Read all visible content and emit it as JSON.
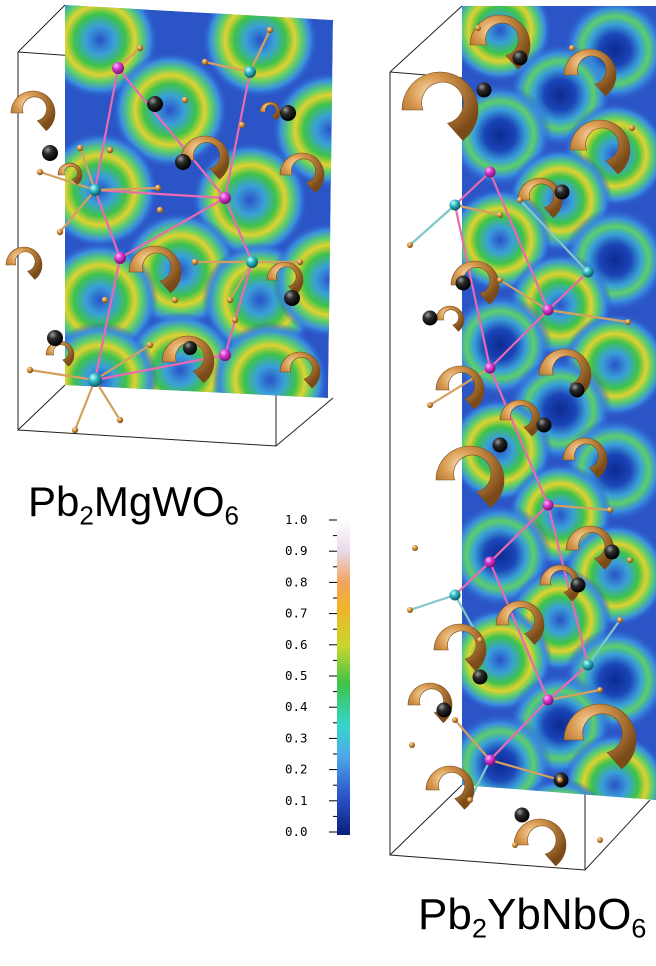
{
  "structures": [
    {
      "formula_parts": [
        "Pb",
        "2",
        "MgWO",
        "6"
      ]
    },
    {
      "formula_parts": [
        "Pb",
        "2",
        "YbNbO",
        "6"
      ]
    }
  ],
  "colorbar": {
    "ticks": [
      "1.0",
      "0.9",
      "0.8",
      "0.7",
      "0.6",
      "0.5",
      "0.4",
      "0.3",
      "0.2",
      "0.1",
      "0.0"
    ],
    "gradient_colors": [
      "#0a1f7a",
      "#2a52c8",
      "#4fa8e8",
      "#35d6c9",
      "#3ec34a",
      "#c9d62b",
      "#f0b42a",
      "#f2a45a",
      "#e8d8e8",
      "#ffffff"
    ]
  },
  "colors": {
    "lead_isosurface": "#c8873a",
    "lead_atom": "#d09040",
    "magenta_atom": "#d93ad0",
    "cyan_atom": "#2fb9c4",
    "dark_atom": "#1a1a1a",
    "bond_pink": "#e86ab0",
    "bond_tan": "#d4a060",
    "bond_cyan": "#7ec8c8"
  }
}
